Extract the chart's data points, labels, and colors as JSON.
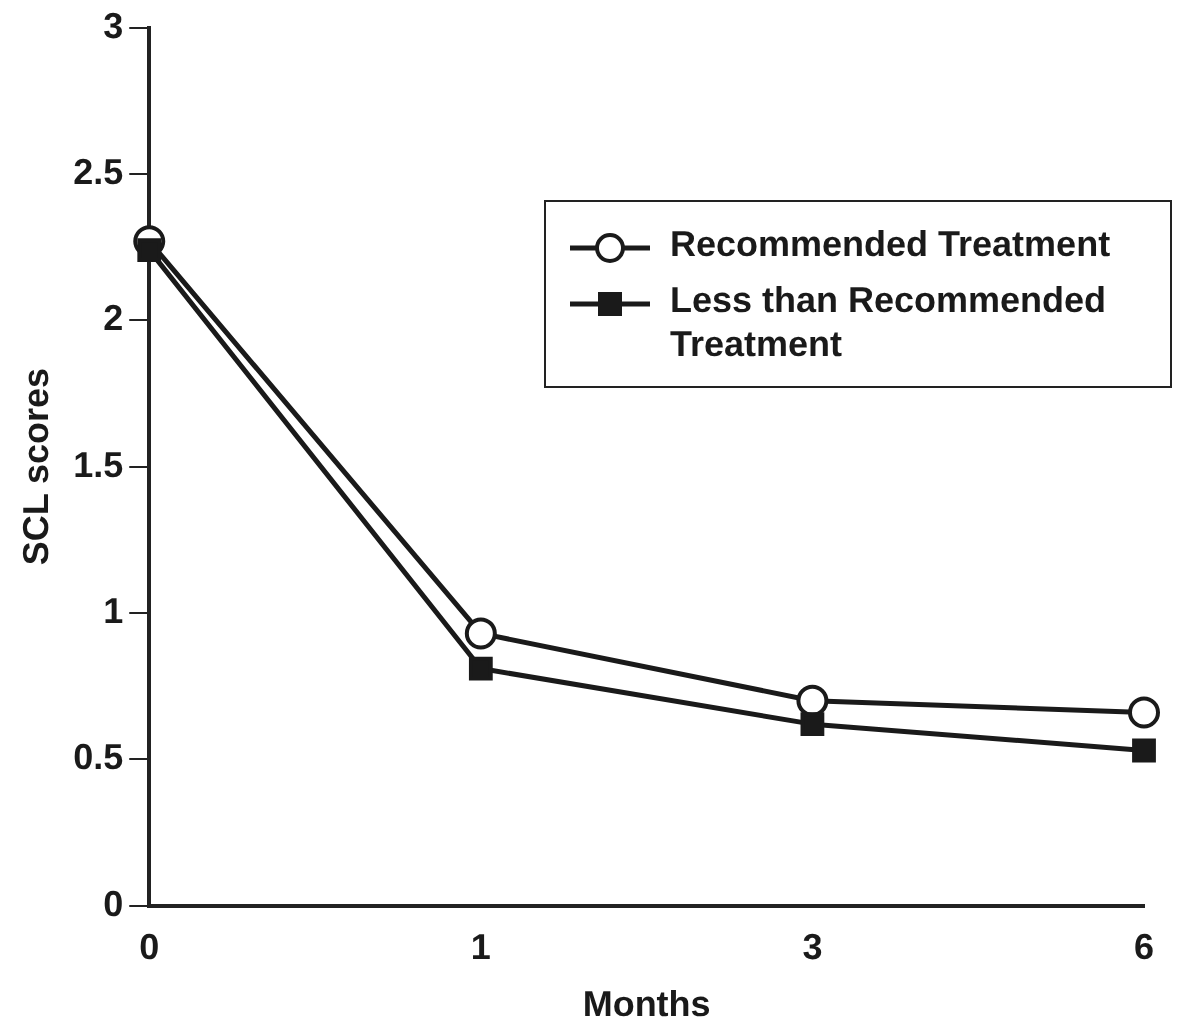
{
  "chart_data": {
    "type": "line",
    "xlabel": "Months",
    "ylabel": "SCL scores",
    "categories": [
      "0",
      "1",
      "3",
      "6"
    ],
    "ylim": [
      0,
      3
    ],
    "yticks": [
      0,
      0.5,
      1,
      1.5,
      2,
      2.5,
      3
    ],
    "grid": false,
    "legend": "top right",
    "line_style": "solid",
    "series": [
      {
        "name": "Recommended Treatment",
        "color": "#1a1a1a",
        "marker": "circle",
        "values": [
          2.27,
          0.93,
          0.7,
          0.66
        ]
      },
      {
        "name": "Less than Recommended Treatment",
        "color": "#1a1a1a",
        "marker": "square",
        "values": [
          2.24,
          0.81,
          0.62,
          0.53
        ]
      }
    ]
  }
}
